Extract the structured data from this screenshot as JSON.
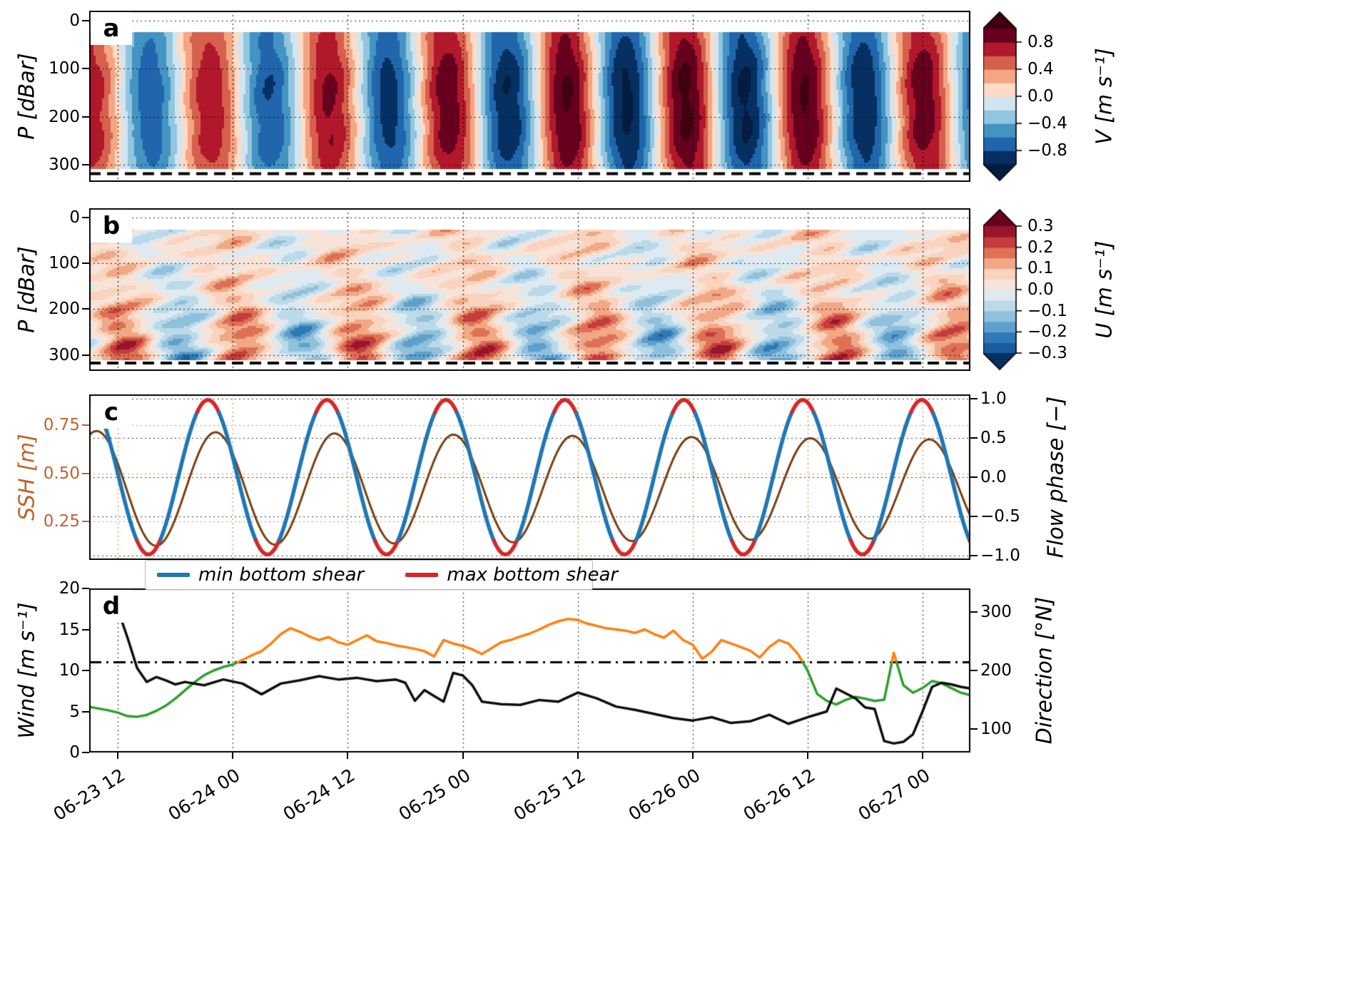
{
  "x_axis": {
    "tick_labels": [
      "06-23 12",
      "06-24 00",
      "06-24 12",
      "06-25 00",
      "06-25 12",
      "06-26 00",
      "06-26 12",
      "06-27 00"
    ],
    "tick_hours": [
      3,
      15,
      27,
      39,
      51,
      63,
      75,
      87
    ],
    "hours_total": 92
  },
  "panels": {
    "a": {
      "letter": "a",
      "ylabel": "P [dBar]",
      "ytick_labels": [
        "0",
        "100",
        "200",
        "300"
      ],
      "ytick_values": [
        0,
        100,
        200,
        300
      ],
      "ylim": [
        -20,
        335
      ],
      "dashed_line_depth": 318,
      "colorbar": {
        "label": "V [m s⁻¹]",
        "tick_labels": [
          "0.8",
          "0.4",
          "0.0",
          "−0.4",
          "−0.8"
        ],
        "tick_values": [
          0.8,
          0.4,
          0.0,
          -0.4,
          -0.8
        ],
        "vmin": -1.0,
        "vmax": 1.0,
        "colors": [
          "#053061",
          "#2166ac",
          "#4393c3",
          "#92c5de",
          "#d1e5f0",
          "#fddbc7",
          "#f4a582",
          "#d6604d",
          "#b2182b",
          "#67001f"
        ],
        "under": "#031d40",
        "over": "#40000f"
      }
    },
    "b": {
      "letter": "b",
      "ylabel": "P [dBar]",
      "ytick_labels": [
        "0",
        "100",
        "200",
        "300"
      ],
      "ytick_values": [
        0,
        100,
        200,
        300
      ],
      "ylim": [
        -20,
        335
      ],
      "dashed_line_depth": 318,
      "colorbar": {
        "label": "U [m s⁻¹]",
        "tick_labels": [
          "0.3",
          "0.2",
          "0.1",
          "0.0",
          "−0.1",
          "−0.2",
          "−0.3"
        ],
        "tick_values": [
          0.3,
          0.2,
          0.1,
          0.0,
          -0.1,
          -0.2,
          -0.3
        ],
        "vmin": -0.3,
        "vmax": 0.3,
        "colors": [
          "#1a5c9e",
          "#3079b6",
          "#5ea0cb",
          "#8fc0dc",
          "#bcd9e9",
          "#ddeaf2",
          "#f7e3d8",
          "#f9d3bd",
          "#f0a886",
          "#de7055",
          "#c43c3e",
          "#97162c"
        ],
        "under": "#053061",
        "over": "#67001f"
      }
    },
    "c": {
      "letter": "c",
      "ylabel_left": "SSH [m]",
      "ylabel_left_color": "#c0622d",
      "grid_color_left": "#cf8a52",
      "ytick_labels_left": [
        "0.75",
        "0.50",
        "0.25"
      ],
      "ytick_values_left": [
        0.75,
        0.5,
        0.25
      ],
      "ylim_left": [
        0.05,
        0.91
      ],
      "ylabel_right": "Flow phase [−]",
      "ytick_labels_right": [
        "1.0",
        "0.5",
        "0.0",
        "−0.5",
        "−1.0"
      ],
      "ytick_values_right": [
        1.0,
        0.5,
        0.0,
        -0.5,
        -1.0
      ],
      "ylim_right": [
        -1.05,
        1.05
      ],
      "legend": [
        {
          "label": "min bottom shear",
          "color": "#1f77b4"
        },
        {
          "label": "max bottom shear",
          "color": "#d62728"
        }
      ]
    },
    "d": {
      "letter": "d",
      "ylabel_left": "Wind [m s⁻¹]",
      "ytick_labels_left": [
        "0",
        "5",
        "10",
        "15",
        "20"
      ],
      "ytick_values_left": [
        0,
        5,
        10,
        15,
        20
      ],
      "ylim_left": [
        0,
        20
      ],
      "ylabel_right": "Direction [°N]",
      "ytick_labels_right": [
        "100",
        "200",
        "300"
      ],
      "ytick_values_right": [
        100,
        200,
        300
      ],
      "ylim_right": [
        60,
        340
      ],
      "threshold_line_wind": 11
    }
  },
  "chart_data": [
    {
      "id": "a",
      "type": "heatmap",
      "quantity": "V [m s⁻¹]",
      "time_span_hours": [
        0,
        92
      ],
      "depth_span_dbar": [
        25,
        310
      ],
      "model": {
        "period_hours": 12.42,
        "peak_hour": 12.4,
        "amp_mean": 0.9,
        "amp_mod": 0.16,
        "amp_mod_center_hour": 62,
        "amp_mod_period_hours": 120,
        "depth_phase_lag_hours": 0.4,
        "noise_amp": 0.05
      }
    },
    {
      "id": "b",
      "type": "heatmap",
      "quantity": "U [m s⁻¹]",
      "time_span_hours": [
        0,
        92
      ],
      "depth_span_dbar": [
        25,
        310
      ],
      "model": {
        "period_hours": 12.42,
        "surface_amp": 0.045,
        "surface_peak_hour": 14,
        "deep_amp": 0.16,
        "deep_peak_hour": 16.5,
        "deep_start_dbar": 110,
        "deep_full_dbar": 280,
        "offset": 0.02,
        "noise_amp": 0.12
      }
    },
    {
      "id": "c",
      "type": "line",
      "series": [
        {
          "name": "SSH [m]",
          "axis": "left",
          "color": "#7a3e0e",
          "model": {
            "mean": 0.42,
            "amplitude": 0.3,
            "amplitude_decay_per_hour": 0.0005,
            "period_hours": 12.42,
            "peak_hour": 13.2
          }
        },
        {
          "name": "Flow phase [−]",
          "axis": "right",
          "model": {
            "amplitude": 0.98,
            "period_hours": 12.42,
            "peak_hour": 12.4
          },
          "segments": {
            "min_bottom_shear_color": "#1f77b4",
            "max_bottom_shear_color": "#d62728",
            "max_shear_when_above": 0.82,
            "max_shear_when_below": -0.8
          }
        }
      ]
    },
    {
      "id": "d",
      "type": "line",
      "hline": {
        "axis": "left",
        "value": 11,
        "style": "dashdot",
        "color": "#000000"
      },
      "series": [
        {
          "name": "Wind [m s⁻¹]",
          "axis": "left",
          "color": "#0d0d0d",
          "points": [
            [
              3,
              17.4
            ],
            [
              4,
              14.0
            ],
            [
              5,
              10.3
            ],
            [
              6,
              8.6
            ],
            [
              7,
              9.2
            ],
            [
              8,
              8.8
            ],
            [
              9,
              8.3
            ],
            [
              10,
              8.6
            ],
            [
              12,
              8.2
            ],
            [
              14,
              8.9
            ],
            [
              16,
              8.4
            ],
            [
              18,
              7.1
            ],
            [
              20,
              8.4
            ],
            [
              22,
              8.8
            ],
            [
              24,
              9.3
            ],
            [
              26,
              8.9
            ],
            [
              28,
              9.1
            ],
            [
              30,
              8.7
            ],
            [
              32,
              8.9
            ],
            [
              33,
              8.5
            ],
            [
              34,
              6.3
            ],
            [
              35,
              7.6
            ],
            [
              36,
              6.9
            ],
            [
              37,
              6.2
            ],
            [
              38,
              9.7
            ],
            [
              39,
              9.4
            ],
            [
              40,
              8.2
            ],
            [
              41,
              6.2
            ],
            [
              43,
              5.9
            ],
            [
              45,
              5.8
            ],
            [
              47,
              6.4
            ],
            [
              49,
              6.2
            ],
            [
              51,
              7.3
            ],
            [
              53,
              6.6
            ],
            [
              55,
              5.6
            ],
            [
              57,
              5.2
            ],
            [
              59,
              4.7
            ],
            [
              61,
              4.2
            ],
            [
              63,
              3.9
            ],
            [
              65,
              4.3
            ],
            [
              67,
              3.6
            ],
            [
              69,
              3.8
            ],
            [
              71,
              4.6
            ],
            [
              73,
              3.5
            ],
            [
              75,
              4.3
            ],
            [
              77,
              5.0
            ],
            [
              78,
              7.8
            ],
            [
              79,
              7.2
            ],
            [
              80,
              6.6
            ],
            [
              81,
              5.5
            ],
            [
              82,
              5.3
            ],
            [
              83,
              1.4
            ],
            [
              84,
              1.1
            ],
            [
              85,
              1.3
            ],
            [
              86,
              2.2
            ],
            [
              87,
              5.0
            ],
            [
              88,
              8.0
            ],
            [
              89,
              8.5
            ],
            [
              90,
              8.3
            ],
            [
              91,
              8.0
            ],
            [
              92,
              7.8
            ]
          ]
        },
        {
          "name": "Direction [°N]",
          "axis": "right",
          "color_below": "#2ca02c",
          "color_above": "#ff7f0e",
          "threshold": 214,
          "points": [
            [
              0,
              138
            ],
            [
              2,
              132
            ],
            [
              3,
              128
            ],
            [
              4,
              122
            ],
            [
              5,
              121
            ],
            [
              6,
              124
            ],
            [
              7,
              131
            ],
            [
              8,
              140
            ],
            [
              9,
              152
            ],
            [
              10,
              166
            ],
            [
              11,
              180
            ],
            [
              12,
              192
            ],
            [
              13,
              200
            ],
            [
              14,
              206
            ],
            [
              15,
              210
            ],
            [
              16,
              218
            ],
            [
              17,
              226
            ],
            [
              18,
              233
            ],
            [
              19,
              246
            ],
            [
              20,
              262
            ],
            [
              21,
              272
            ],
            [
              22,
              266
            ],
            [
              23,
              258
            ],
            [
              24,
              252
            ],
            [
              25,
              257
            ],
            [
              26,
              248
            ],
            [
              27,
              244
            ],
            [
              28,
              252
            ],
            [
              29,
              260
            ],
            [
              30,
              250
            ],
            [
              31,
              247
            ],
            [
              32,
              243
            ],
            [
              33,
              240
            ],
            [
              34,
              237
            ],
            [
              35,
              233
            ],
            [
              36,
              224
            ],
            [
              37,
              252
            ],
            [
              38,
              246
            ],
            [
              39,
              242
            ],
            [
              40,
              236
            ],
            [
              41,
              228
            ],
            [
              42,
              238
            ],
            [
              43,
              248
            ],
            [
              44,
              252
            ],
            [
              45,
              258
            ],
            [
              46,
              263
            ],
            [
              47,
              270
            ],
            [
              48,
              278
            ],
            [
              49,
              284
            ],
            [
              50,
              288
            ],
            [
              51,
              286
            ],
            [
              52,
              280
            ],
            [
              53,
              276
            ],
            [
              54,
              272
            ],
            [
              55,
              270
            ],
            [
              56,
              268
            ],
            [
              57,
              264
            ],
            [
              58,
              270
            ],
            [
              59,
              262
            ],
            [
              60,
              256
            ],
            [
              61,
              268
            ],
            [
              62,
              252
            ],
            [
              63,
              244
            ],
            [
              64,
              220
            ],
            [
              65,
              232
            ],
            [
              66,
              252
            ],
            [
              67,
              246
            ],
            [
              68,
              240
            ],
            [
              69,
              234
            ],
            [
              70,
              222
            ],
            [
              71,
              240
            ],
            [
              72,
              252
            ],
            [
              73,
              246
            ],
            [
              74,
              228
            ],
            [
              75,
              200
            ],
            [
              76,
              160
            ],
            [
              77,
              148
            ],
            [
              78,
              142
            ],
            [
              79,
              150
            ],
            [
              80,
              155
            ],
            [
              81,
              152
            ],
            [
              82,
              148
            ],
            [
              83,
              150
            ],
            [
              84,
              230
            ],
            [
              85,
              175
            ],
            [
              86,
              162
            ],
            [
              87,
              170
            ],
            [
              88,
              182
            ],
            [
              89,
              178
            ],
            [
              90,
              170
            ],
            [
              91,
              162
            ],
            [
              92,
              158
            ]
          ]
        }
      ]
    }
  ]
}
